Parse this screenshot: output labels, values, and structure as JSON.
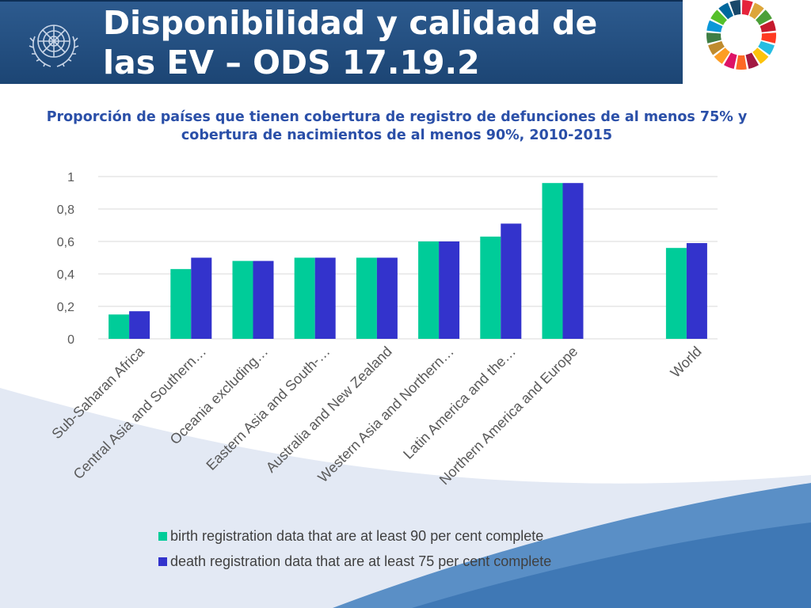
{
  "header": {
    "title_line1": "Disponibilidad y calidad de",
    "title_line2": "las EV – ODS 17.19.2",
    "logo_icon": "un-emblem-icon",
    "sdg_icon": "sdg-wheel-icon"
  },
  "colors": {
    "header_bg": "#1f4a7a",
    "birth": "#00cc99",
    "death": "#3333cc",
    "title_text": "#2a4fa8"
  },
  "chart_data": {
    "type": "bar",
    "title": "Proporción de países que tienen cobertura de registro de defunciones de al menos 75% y cobertura de nacimientos de al menos 90%, 2010-2015",
    "categories": [
      "Sub-Saharan Africa",
      "Central Asia and Southern…",
      "Oceania excluding…",
      "Eastern Asia and South-…",
      "Australia and New Zealand",
      "Western Asia and Northern…",
      "Latin America and the…",
      "Northern America and Europe",
      "",
      "World"
    ],
    "series": [
      {
        "name": "birth registration data that are at least 90 per cent complete",
        "values": [
          0.15,
          0.43,
          0.48,
          0.5,
          0.5,
          0.6,
          0.63,
          0.96,
          null,
          0.56
        ]
      },
      {
        "name": "death registration data that are at least 75 per cent complete",
        "values": [
          0.17,
          0.5,
          0.48,
          0.5,
          0.5,
          0.6,
          0.71,
          0.96,
          null,
          0.59
        ]
      }
    ],
    "ylim": [
      0,
      1
    ],
    "yticks": [
      "0",
      "0,2",
      "0,4",
      "0,6",
      "0,8",
      "1"
    ],
    "grid": true,
    "legend_position": "bottom"
  }
}
